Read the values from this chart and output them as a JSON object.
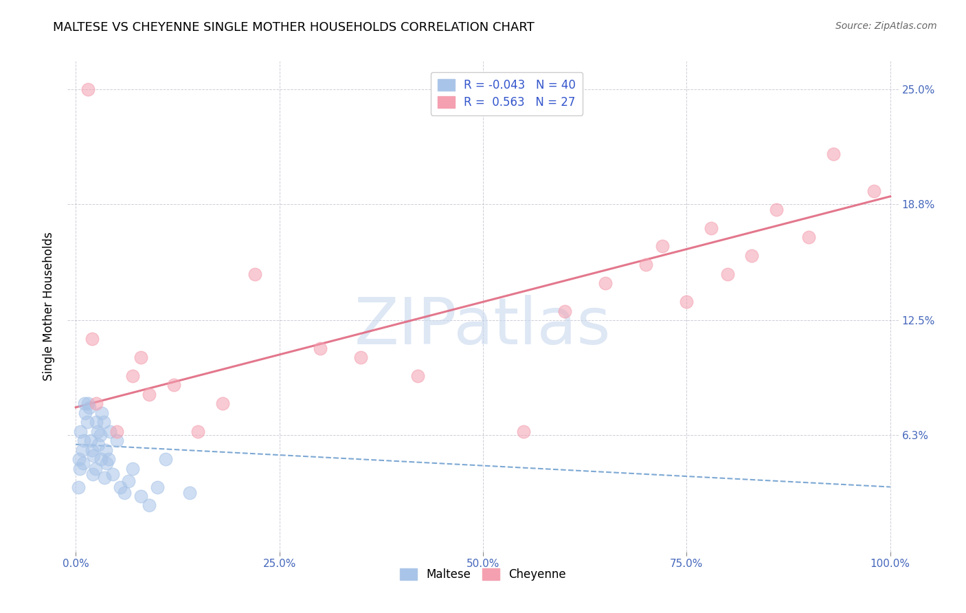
{
  "title": "MALTESE VS CHEYENNE SINGLE MOTHER HOUSEHOLDS CORRELATION CHART",
  "source": "Source: ZipAtlas.com",
  "ylabel": "Single Mother Households",
  "legend": {
    "maltese_R": "-0.043",
    "maltese_N": "40",
    "cheyenne_R": "0.563",
    "cheyenne_N": "27"
  },
  "maltese_color": "#a8c4e8",
  "cheyenne_color": "#f4a0b0",
  "maltese_line_color": "#6699cc",
  "cheyenne_line_color": "#e06880",
  "watermark_text": "ZIPatlas",
  "maltese_x": [
    0.3,
    0.5,
    0.8,
    1.0,
    1.2,
    1.5,
    1.8,
    2.0,
    2.2,
    2.5,
    2.8,
    3.0,
    3.2,
    3.5,
    3.8,
    4.0,
    4.5,
    5.0,
    5.5,
    6.0,
    6.5,
    7.0,
    8.0,
    9.0,
    10.0,
    11.0,
    14.0,
    0.4,
    0.6,
    0.9,
    1.1,
    1.4,
    1.7,
    2.1,
    2.4,
    2.7,
    3.1,
    3.4,
    3.7,
    4.2
  ],
  "maltese_y": [
    3.5,
    4.5,
    5.5,
    6.0,
    7.5,
    8.0,
    6.0,
    5.5,
    5.2,
    7.0,
    5.8,
    6.3,
    7.5,
    4.0,
    4.8,
    5.0,
    4.2,
    6.0,
    3.5,
    3.2,
    3.8,
    4.5,
    3.0,
    2.5,
    3.5,
    5.0,
    3.2,
    5.0,
    6.5,
    4.8,
    8.0,
    7.0,
    7.8,
    4.2,
    4.5,
    6.5,
    5.0,
    7.0,
    5.5,
    6.5
  ],
  "cheyenne_x": [
    1.5,
    2.0,
    2.5,
    5.0,
    7.0,
    8.0,
    9.0,
    12.0,
    15.0,
    18.0,
    22.0,
    30.0,
    35.0,
    42.0,
    55.0,
    60.0,
    65.0,
    70.0,
    72.0,
    75.0,
    78.0,
    80.0,
    83.0,
    86.0,
    90.0,
    93.0,
    98.0
  ],
  "cheyenne_y": [
    25.0,
    11.5,
    8.0,
    6.5,
    9.5,
    10.5,
    8.5,
    9.0,
    6.5,
    8.0,
    15.0,
    11.0,
    10.5,
    9.5,
    6.5,
    13.0,
    14.5,
    15.5,
    16.5,
    13.5,
    17.5,
    15.0,
    16.0,
    18.5,
    17.0,
    21.5,
    19.5
  ],
  "cheyenne_line_x0": 0,
  "cheyenne_line_y0": 7.8,
  "cheyenne_line_x1": 100,
  "cheyenne_line_y1": 19.2,
  "maltese_line_x0": 0,
  "maltese_line_y0": 5.8,
  "maltese_line_x1": 100,
  "maltese_line_y1": 3.5,
  "xlim": [
    0,
    100
  ],
  "ylim": [
    0,
    26.5
  ],
  "xticks": [
    0,
    25,
    50,
    75,
    100
  ],
  "xtick_labels": [
    "0.0%",
    "25.0%",
    "50.0%",
    "75.0%",
    "100.0%"
  ],
  "yticks": [
    0,
    6.3,
    12.5,
    18.8,
    25.0
  ],
  "right_ytick_labels": [
    "6.3%",
    "12.5%",
    "18.8%",
    "25.0%"
  ],
  "right_ytick_vals": [
    6.3,
    12.5,
    18.8,
    25.0
  ],
  "title_fontsize": 13,
  "axis_tick_fontsize": 11,
  "label_fontsize": 12
}
